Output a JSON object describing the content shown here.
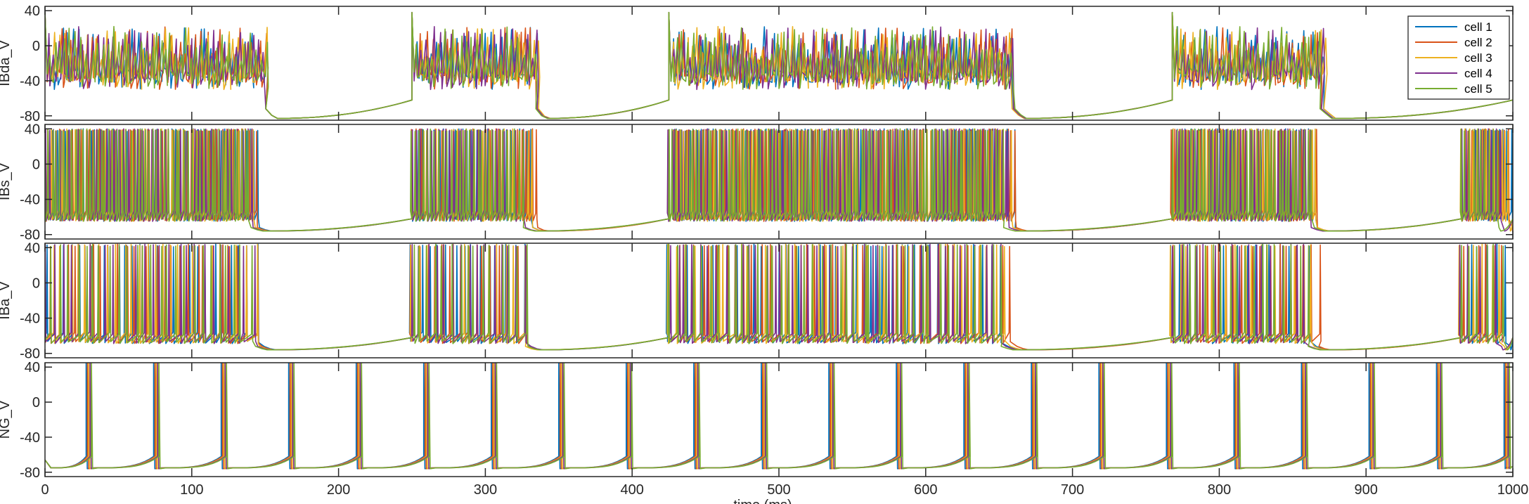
{
  "chart_data": {
    "type": "line",
    "figure_kind": "stacked-voltage-traces",
    "xlabel": "time (ms)",
    "xlim": [
      0,
      1000
    ],
    "xticks": [
      0,
      100,
      200,
      300,
      400,
      500,
      600,
      700,
      800,
      900,
      1000
    ],
    "series_colors": [
      "#0072BD",
      "#D95319",
      "#EDB120",
      "#7E2F8E",
      "#77AC30"
    ],
    "legend": {
      "placement": "top-right of first panel",
      "entries": [
        "cell 1",
        "cell 2",
        "cell 3",
        "cell 4",
        "cell 5"
      ]
    },
    "panels": [
      {
        "ylabel": "IBda_V",
        "ylim": [
          -85,
          45
        ],
        "yticks": [
          -80,
          -40,
          0,
          40
        ],
        "kind": "burst",
        "bursts": [
          [
            0,
            150
          ],
          [
            250,
            335
          ],
          [
            425,
            660
          ],
          [
            768,
            870
          ]
        ],
        "rest_min": -83,
        "rest_max": -62,
        "spike_min": -50,
        "spike_max": 22,
        "base_level": -35,
        "burst_start_peak": 38,
        "spike_period_ms": 3.2
      },
      {
        "ylabel": "IBs_V",
        "ylim": [
          -85,
          45
        ],
        "yticks": [
          -80,
          -40,
          0,
          40
        ],
        "kind": "spike",
        "bursts": [
          [
            0,
            150
          ],
          [
            250,
            335
          ],
          [
            425,
            660
          ],
          [
            768,
            870
          ],
          [
            965,
            1000
          ]
        ],
        "rest_min": -76,
        "rest_max": -62,
        "spike_min": -62,
        "spike_max": 40,
        "spike_period_ms": 2.5
      },
      {
        "ylabel": "IBa_V",
        "ylim": [
          -85,
          45
        ],
        "yticks": [
          -80,
          -40,
          0,
          40
        ],
        "kind": "spike",
        "bursts": [
          [
            0,
            150
          ],
          [
            250,
            333
          ],
          [
            425,
            660
          ],
          [
            768,
            870
          ],
          [
            965,
            1000
          ]
        ],
        "rest_min": -76,
        "rest_max": -62,
        "spike_min": -66,
        "spike_max": 44,
        "spike_period_ms": 5.5
      },
      {
        "ylabel": "NG_V",
        "ylim": [
          -85,
          45
        ],
        "yticks": [
          -80,
          -40,
          0,
          40
        ],
        "kind": "relaxation",
        "spike_times": [
          30,
          76,
          122,
          168,
          214,
          260,
          306,
          352,
          398,
          444,
          490,
          536,
          582,
          628,
          674,
          720,
          766,
          812,
          858,
          904,
          950,
          996
        ],
        "rest_min": -75,
        "rest_max": -62,
        "spike_max": 50
      }
    ]
  }
}
